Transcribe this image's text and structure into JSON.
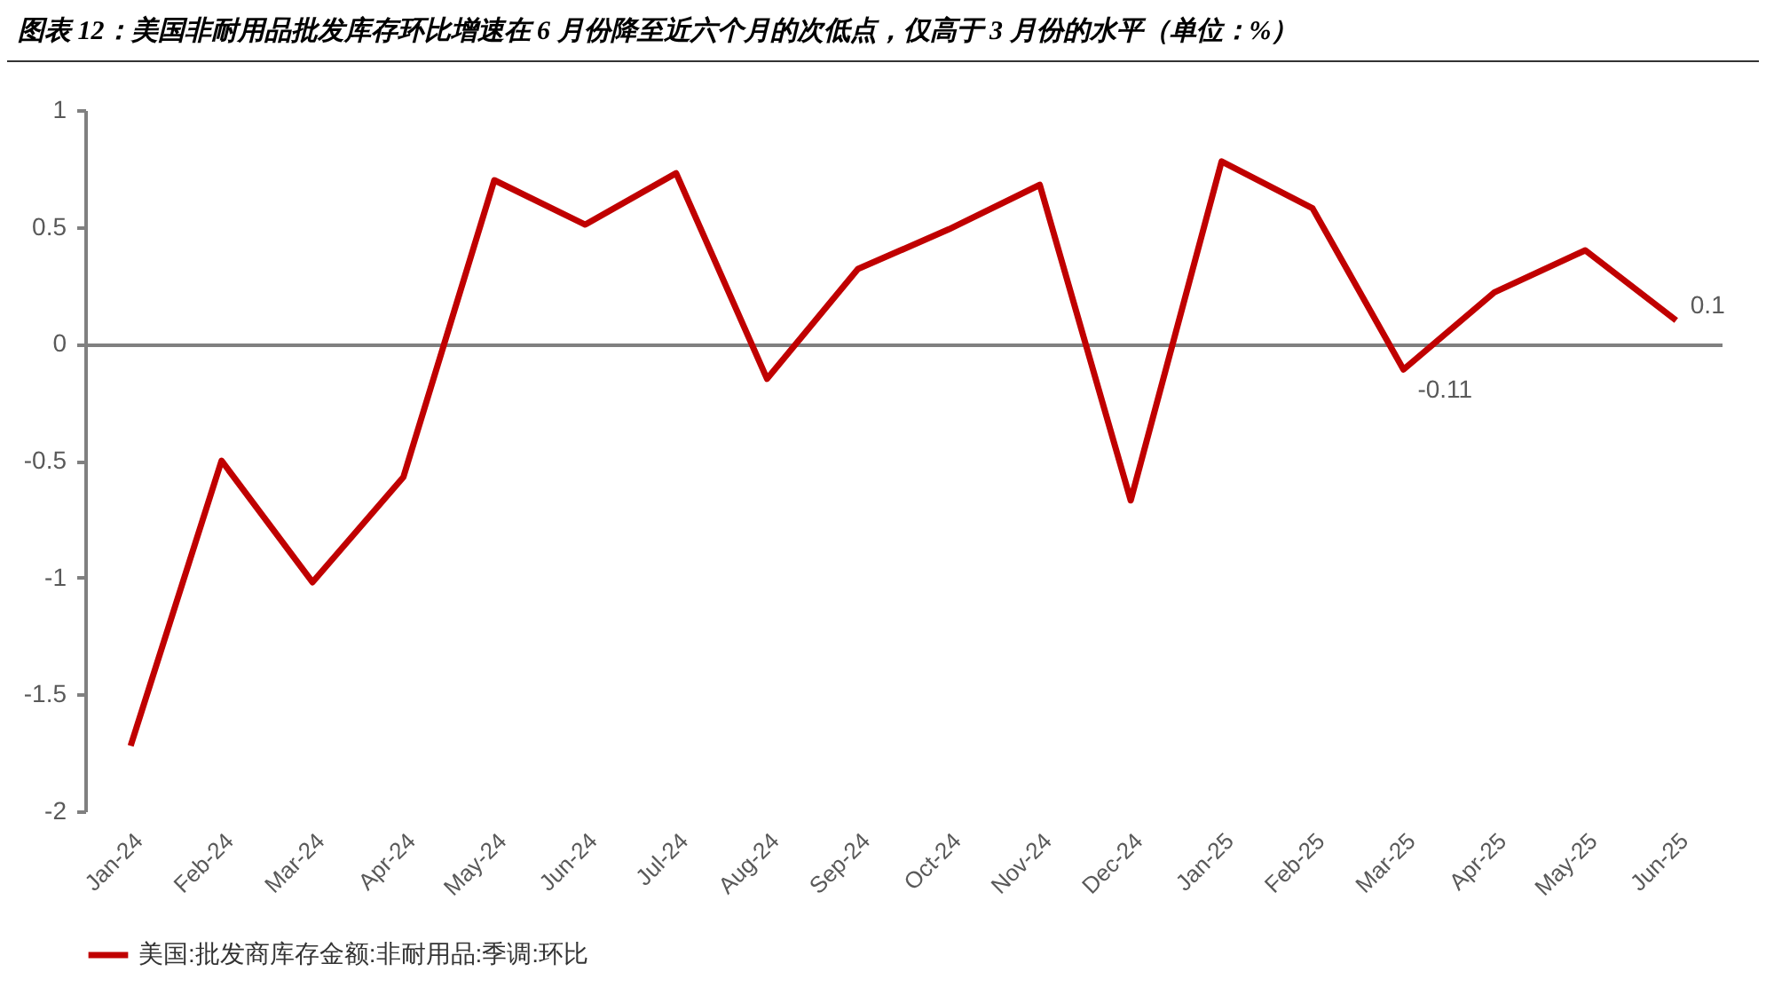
{
  "chart_data": {
    "type": "line",
    "title": "图表 12：美国非耐用品批发库存环比增速在 6 月份降至近六个月的次低点，仅高于 3 月份的水平（单位：%）",
    "categories": [
      "Jan-24",
      "Feb-24",
      "Mar-24",
      "Apr-24",
      "May-24",
      "Jun-24",
      "Jul-24",
      "Aug-24",
      "Sep-24",
      "Oct-24",
      "Nov-24",
      "Dec-24",
      "Jan-25",
      "Feb-25",
      "Mar-25",
      "Apr-25",
      "May-25",
      "Jun-25"
    ],
    "series": [
      {
        "name": "美国:批发商库存金额:非耐用品:季调:环比",
        "color": "#c00000",
        "values": [
          -1.72,
          -0.5,
          -1.02,
          -0.57,
          0.7,
          0.51,
          0.73,
          -0.15,
          0.32,
          0.49,
          0.68,
          -0.67,
          0.78,
          0.58,
          -0.11,
          0.22,
          0.4,
          0.1
        ],
        "value_labels": [
          null,
          null,
          null,
          null,
          null,
          null,
          null,
          null,
          null,
          null,
          null,
          null,
          null,
          null,
          "-0.11",
          null,
          null,
          "0.1"
        ]
      }
    ],
    "ylim": [
      -2,
      1
    ],
    "yticks": [
      -2,
      -1.5,
      -1,
      -0.5,
      0,
      0.5,
      1
    ],
    "legend": "bottom",
    "marker": "none",
    "line_style": "solid"
  }
}
